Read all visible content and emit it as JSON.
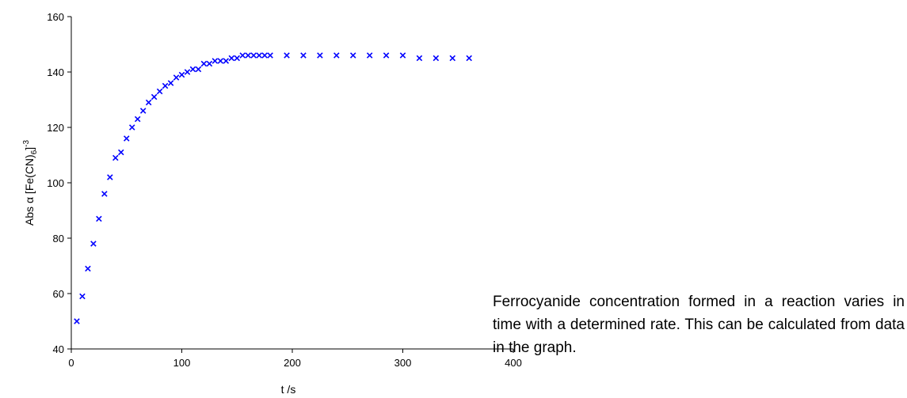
{
  "chart_data": {
    "type": "scatter",
    "xlabel": "t /s",
    "ylabel": "Abs α [Fe(CN)",
    "ylabel_sub": "6",
    "ylabel_tail": "]",
    "ylabel_sup": "-3",
    "xlim": [
      0,
      400
    ],
    "ylim": [
      40,
      160
    ],
    "x_ticks": [
      0,
      100,
      200,
      300,
      400
    ],
    "y_ticks": [
      40,
      60,
      80,
      100,
      120,
      140,
      160
    ],
    "grid": false,
    "marker": "x",
    "marker_color": "#0000ff",
    "series": [
      {
        "x": [
          5,
          10,
          15,
          20,
          25,
          30,
          35,
          40,
          45,
          50,
          55,
          60,
          65,
          70,
          75,
          80,
          85,
          90,
          95,
          100,
          105,
          110,
          115,
          120,
          125,
          130,
          135,
          140,
          145,
          150,
          155,
          160,
          165,
          170,
          175,
          180,
          195,
          210,
          225,
          240,
          255,
          270,
          285,
          300,
          315,
          330,
          345,
          360
        ],
        "y": [
          50,
          59,
          69,
          78,
          87,
          96,
          102,
          109,
          111,
          116,
          120,
          123,
          126,
          129,
          131,
          133,
          135,
          136,
          138,
          139,
          140,
          141,
          141,
          143,
          143,
          144,
          144,
          144,
          145,
          145,
          146,
          146,
          146,
          146,
          146,
          146,
          146,
          146,
          146,
          146,
          146,
          146,
          146,
          146,
          145,
          145,
          145,
          145
        ]
      }
    ]
  },
  "caption": "Ferrocyanide concentration formed in a reaction varies in time with a determined rate. This can be calculated from data in the graph."
}
